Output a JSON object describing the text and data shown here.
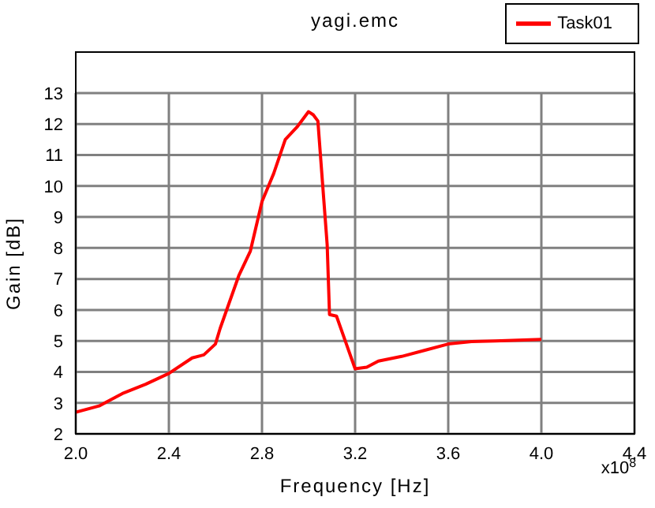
{
  "chart_data": {
    "type": "line",
    "title": "yagi.emc",
    "xlabel": "Frequency [Hz]",
    "ylabel": "Gain [dB]",
    "annotations": [
      "x10$^{8}$"
    ],
    "series": [
      {
        "name": "Task01",
        "color": "#ff0000",
        "x": [
          2.0,
          2.1,
          2.2,
          2.3,
          2.4,
          2.5,
          2.55,
          2.6,
          2.62,
          2.7,
          2.75,
          2.8,
          2.85,
          2.9,
          2.95,
          3.0,
          3.02,
          3.04,
          3.06,
          3.08,
          3.09,
          3.12,
          3.16,
          3.2,
          3.25,
          3.3,
          3.4,
          3.5,
          3.6,
          3.7,
          3.8,
          4.0
        ],
        "values": [
          2.7,
          2.9,
          3.3,
          3.6,
          3.95,
          4.45,
          4.55,
          4.9,
          5.4,
          7.1,
          7.9,
          9.5,
          10.4,
          11.5,
          11.9,
          12.4,
          12.3,
          12.1,
          10.1,
          8.1,
          5.85,
          5.8,
          4.95,
          4.1,
          4.15,
          4.35,
          4.5,
          4.7,
          4.9,
          4.98,
          5.0,
          5.05
        ]
      }
    ],
    "xlim": [
      2.0,
      4.4
    ],
    "xticks": [
      {
        "value": 2.0,
        "label": "2.0"
      },
      {
        "value": 2.4,
        "label": "2.4"
      },
      {
        "value": 2.8,
        "label": "2.8"
      },
      {
        "value": 3.2,
        "label": "3.2"
      },
      {
        "value": 3.6,
        "label": "3.6"
      },
      {
        "value": 4.0,
        "label": "4.0"
      },
      {
        "value": 4.4,
        "label": "4.4"
      }
    ],
    "ylim": [
      2,
      13
    ],
    "yticks": [
      2,
      3,
      4,
      5,
      6,
      7,
      8,
      9,
      10,
      11,
      12,
      13
    ],
    "grid": true,
    "legend": "top right",
    "marker": "none",
    "line_style": "solid"
  }
}
